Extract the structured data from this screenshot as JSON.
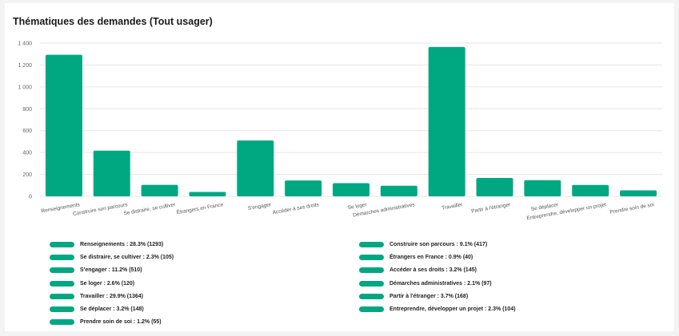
{
  "chart_data": {
    "type": "bar",
    "title": "Thématiques des demandes (Tout usager)",
    "xlabel": "",
    "ylabel": "",
    "ylim": [
      0,
      1400
    ],
    "yticks": [
      "0",
      "200",
      "400",
      "600",
      "800",
      "1 000",
      "1 200",
      "1 400"
    ],
    "grid": true,
    "color": "#00a882",
    "categories": [
      "Renseignements",
      "Construire son parcours",
      "Se distraire, se cultiver",
      "Étrangers en France",
      "S'engager",
      "Accéder à ses droits",
      "Se loger",
      "Démarches administratives",
      "Travailler",
      "Partir à l'étranger",
      "Se déplacer",
      "Entreprendre, développer un projet",
      "Prendre soin de soi"
    ],
    "values": [
      1293,
      417,
      105,
      40,
      510,
      145,
      120,
      97,
      1364,
      168,
      148,
      104,
      55
    ],
    "legend": [
      "Renseignements : 28.3% (1293)",
      "Construire son parcours : 9.1% (417)",
      "Se distraire, se cultiver : 2.3% (105)",
      "Étrangers en France : 0.9% (40)",
      "S'engager : 11.2% (510)",
      "Accéder à ses droits : 3.2% (145)",
      "Se loger : 2.6% (120)",
      "Démarches administratives : 2.1% (97)",
      "Travailler : 29.9% (1364)",
      "Partir à l'étranger : 3.7% (168)",
      "Se déplacer : 3.2% (148)",
      "Entreprendre, développer un projet : 2.3% (104)",
      "Prendre soin de soi : 1.2% (55)"
    ],
    "legend_position": "bottom"
  }
}
